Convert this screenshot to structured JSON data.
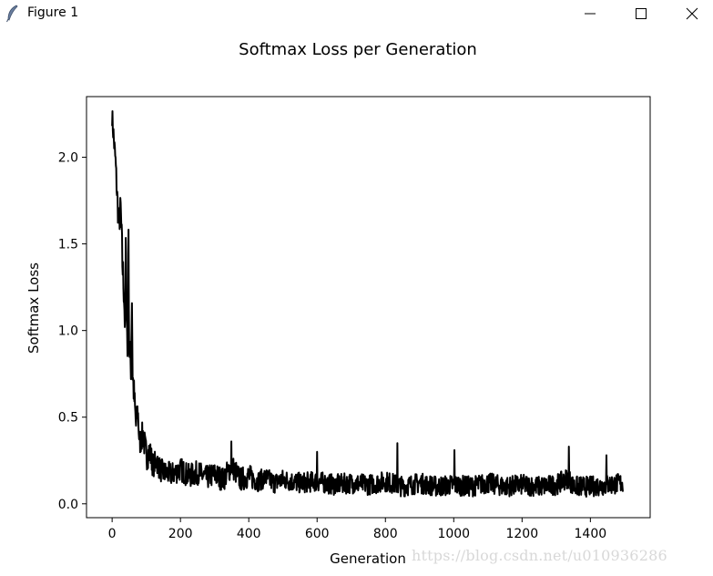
{
  "window": {
    "title": "Figure 1",
    "icon": "feather-icon",
    "controls": {
      "minimize_icon": "minimize-icon",
      "maximize_icon": "maximize-icon",
      "close_icon": "close-icon"
    }
  },
  "chart_data": {
    "type": "line",
    "title": "Softmax Loss per Generation",
    "xlabel": "Generation",
    "ylabel": "Softmax Loss",
    "xlim": [
      -75,
      1575
    ],
    "ylim": [
      -0.08,
      2.35
    ],
    "xticks": [
      0,
      200,
      400,
      600,
      800,
      1000,
      1200,
      1400
    ],
    "xtick_labels": [
      "0",
      "200",
      "400",
      "600",
      "800",
      "1000",
      "1200",
      "1400"
    ],
    "yticks": [
      0.0,
      0.5,
      1.0,
      1.5,
      2.0
    ],
    "ytick_labels": [
      "0.0",
      "0.5",
      "1.0",
      "1.5",
      "2.0"
    ],
    "grid": false,
    "line_color": "#000000",
    "series": [
      {
        "x": [
          0,
          5,
          10,
          15,
          20,
          25,
          30,
          35,
          38,
          40,
          45,
          48,
          50,
          55,
          58,
          60,
          65,
          70,
          75,
          80,
          90,
          100,
          110,
          120,
          130,
          140,
          150,
          175,
          200,
          225,
          250,
          275,
          300,
          325,
          350,
          375,
          400,
          425,
          450,
          475,
          500,
          550,
          600,
          650,
          700,
          750,
          800,
          850,
          900,
          950,
          1000,
          1050,
          1100,
          1150,
          1200,
          1250,
          1300,
          1335,
          1350,
          1400,
          1450,
          1495
        ],
        "y": [
          2.24,
          2.1,
          1.98,
          1.76,
          1.62,
          1.7,
          1.4,
          1.2,
          1.0,
          1.48,
          0.85,
          1.5,
          0.9,
          0.8,
          1.18,
          0.75,
          0.6,
          0.45,
          0.55,
          0.35,
          0.4,
          0.28,
          0.3,
          0.22,
          0.25,
          0.2,
          0.18,
          0.17,
          0.2,
          0.16,
          0.18,
          0.15,
          0.17,
          0.14,
          0.22,
          0.14,
          0.16,
          0.13,
          0.15,
          0.12,
          0.14,
          0.12,
          0.13,
          0.11,
          0.12,
          0.11,
          0.13,
          0.1,
          0.12,
          0.1,
          0.11,
          0.1,
          0.12,
          0.1,
          0.11,
          0.1,
          0.11,
          0.15,
          0.1,
          0.1,
          0.11,
          0.12
        ],
        "noise": [
          0.06,
          0.08,
          0.05,
          0.1,
          0.08,
          0.1,
          0.12,
          0.1,
          0.12,
          0.12,
          0.12,
          0.1,
          0.1,
          0.12,
          0.08,
          0.1,
          0.1,
          0.08,
          0.08,
          0.08,
          0.08,
          0.09,
          0.08,
          0.07,
          0.07,
          0.07,
          0.07,
          0.07,
          0.07,
          0.07,
          0.07,
          0.07,
          0.07,
          0.07,
          0.07,
          0.07,
          0.07,
          0.06,
          0.06,
          0.06,
          0.06,
          0.06,
          0.06,
          0.06,
          0.06,
          0.06,
          0.06,
          0.06,
          0.06,
          0.06,
          0.06,
          0.06,
          0.06,
          0.06,
          0.06,
          0.06,
          0.06,
          0.06,
          0.06,
          0.06,
          0.06,
          0.06
        ],
        "spikes": [
          {
            "x": 349,
            "y": 0.36
          },
          {
            "x": 835,
            "y": 0.35
          },
          {
            "x": 1337,
            "y": 0.33
          },
          {
            "x": 1002,
            "y": 0.31
          },
          {
            "x": 600,
            "y": 0.3
          },
          {
            "x": 1447,
            "y": 0.28
          }
        ]
      }
    ]
  },
  "watermark": "https://blog.csdn.net/u010936286"
}
